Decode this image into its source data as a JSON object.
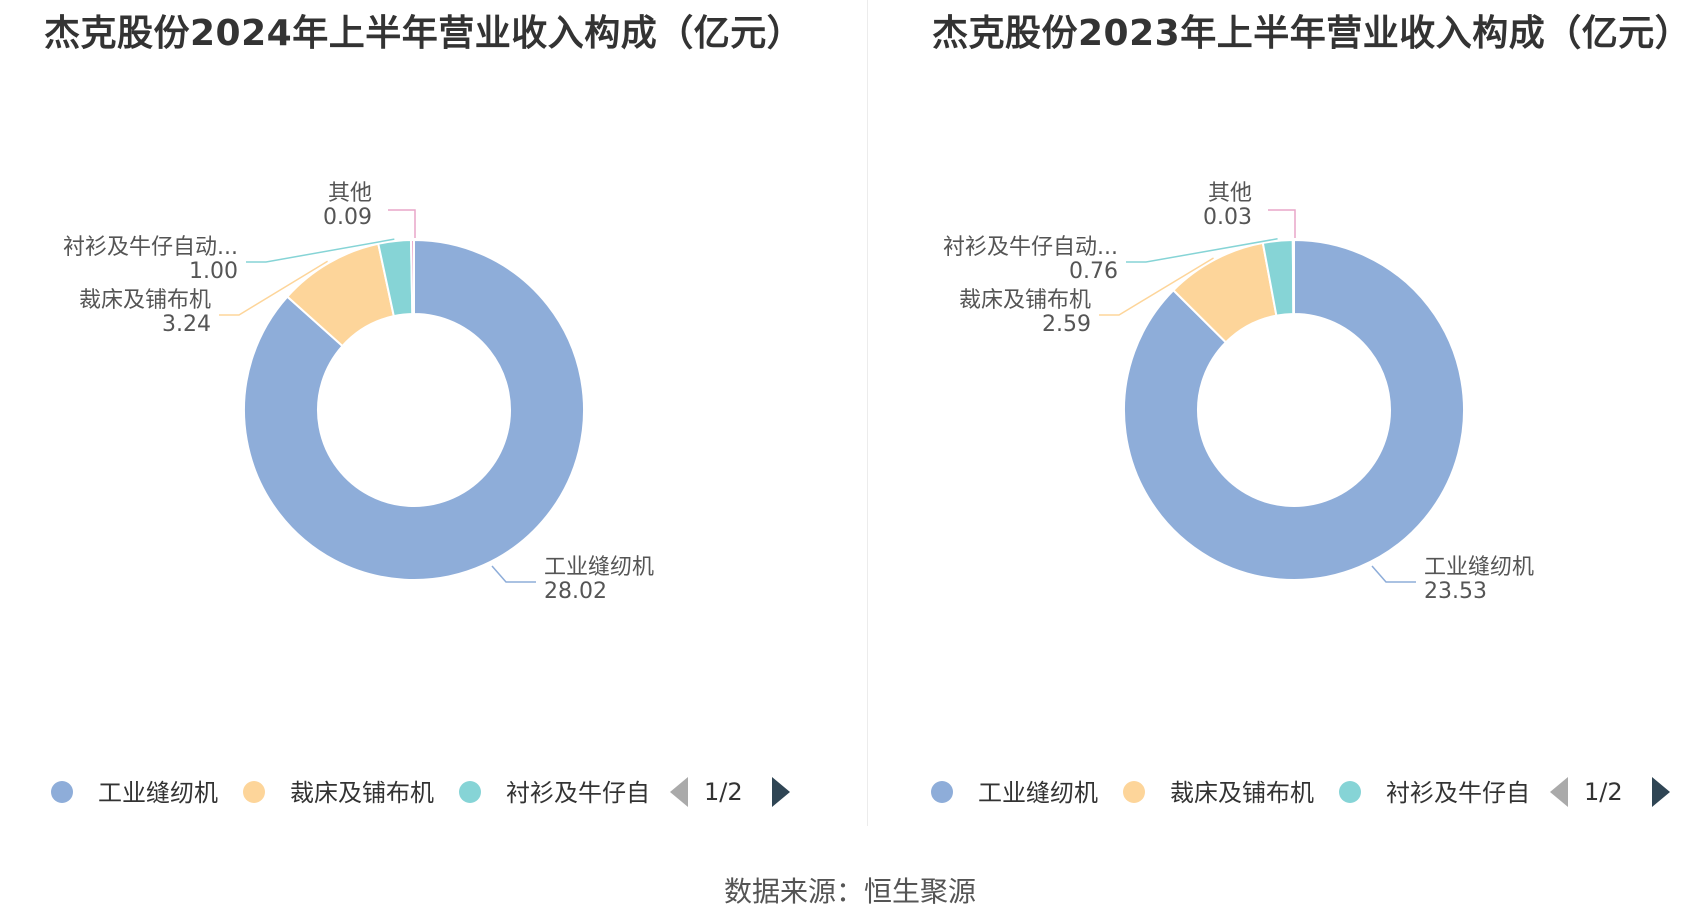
{
  "titles": {
    "left": "杰克股份2024年上半年营业收入构成（亿元）",
    "right": "杰克股份2023年上半年营业收入构成（亿元）"
  },
  "source": "数据来源：恒生聚源",
  "colors": {
    "industrial": "#8eadd9",
    "cutting": "#fdd59a",
    "shirt": "#86d4d6",
    "other": "#e9a6c9"
  },
  "chart_data": [
    {
      "type": "pie",
      "title": "杰克股份2024年上半年营业收入构成（亿元）",
      "donut": true,
      "slices": [
        {
          "name": "工业缝纫机",
          "value": 28.02,
          "label_name": "工业缝纫机",
          "label_value": "28.02"
        },
        {
          "name": "裁床及铺布机",
          "value": 3.24,
          "label_name": "裁床及铺布机",
          "label_value": "3.24"
        },
        {
          "name": "衬衫及牛仔自动化设备",
          "value": 1.0,
          "label_name": "衬衫及牛仔自动...",
          "label_value": "1.00"
        },
        {
          "name": "其他",
          "value": 0.09,
          "label_name": "其他",
          "label_value": "0.09"
        }
      ],
      "legend": {
        "items": [
          "工业缝纫机",
          "裁床及铺布机",
          "衬衫及牛仔自"
        ],
        "page": "1/2",
        "position": "bottom"
      }
    },
    {
      "type": "pie",
      "title": "杰克股份2023年上半年营业收入构成（亿元）",
      "donut": true,
      "slices": [
        {
          "name": "工业缝纫机",
          "value": 23.53,
          "label_name": "工业缝纫机",
          "label_value": "23.53"
        },
        {
          "name": "裁床及铺布机",
          "value": 2.59,
          "label_name": "裁床及铺布机",
          "label_value": "2.59"
        },
        {
          "name": "衬衫及牛仔自动化设备",
          "value": 0.76,
          "label_name": "衬衫及牛仔自动...",
          "label_value": "0.76"
        },
        {
          "name": "其他",
          "value": 0.03,
          "label_name": "其他",
          "label_value": "0.03"
        }
      ],
      "legend": {
        "items": [
          "工业缝纫机",
          "裁床及铺布机",
          "衬衫及牛仔自"
        ],
        "page": "1/2",
        "position": "bottom"
      }
    }
  ]
}
